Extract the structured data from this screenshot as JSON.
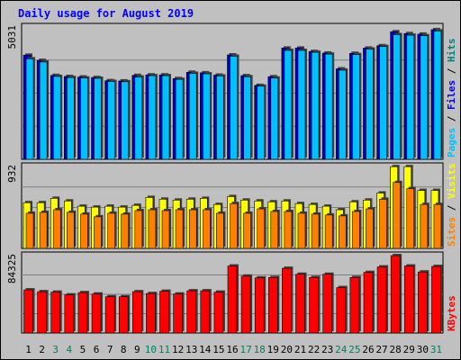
{
  "chart_data": {
    "type": "bar",
    "title": "Daily usage for August 2019",
    "categories": [
      "1",
      "2",
      "3",
      "4",
      "5",
      "6",
      "7",
      "8",
      "9",
      "10",
      "11",
      "12",
      "13",
      "14",
      "15",
      "16",
      "17",
      "18",
      "19",
      "20",
      "21",
      "22",
      "23",
      "24",
      "25",
      "26",
      "27",
      "28",
      "29",
      "30",
      "31"
    ],
    "weekend_days": [
      "3",
      "4",
      "10",
      "11",
      "17",
      "18",
      "24",
      "25",
      "31"
    ],
    "panels": [
      {
        "name": "hits-files-pages",
        "max_label": "5031",
        "ymax": 5031,
        "label_parts": [
          "Pages",
          "Files",
          "Hits"
        ],
        "label_colors": [
          "#00c0ff",
          "#0000ff",
          "#008080"
        ],
        "series": [
          {
            "name": "Hits",
            "color": "#0000cc",
            "values": [
              3960,
              3760,
              3190,
              3150,
              3130,
              3110,
              2990,
              2980,
              3190,
              3210,
              3210,
              3070,
              3310,
              3290,
              3200,
              3970,
              3180,
              2810,
              3140,
              4230,
              4230,
              4100,
              4040,
              3440,
              4030,
              4230,
              4320,
              4850,
              4780,
              4760,
              4930
            ]
          },
          {
            "name": "Files",
            "color": "#00c0ff",
            "values": [
              3820,
              3700,
              3150,
              3110,
              3090,
              3080,
              2960,
              2950,
              3130,
              3180,
              3180,
              3040,
              3270,
              3250,
              3170,
              3920,
              3140,
              2780,
              3090,
              4140,
              4140,
              4070,
              4000,
              3390,
              3980,
              4190,
              4290,
              4740,
              4720,
              4700,
              4880
            ]
          }
        ]
      },
      {
        "name": "visits-sites",
        "max_label": "932",
        "ymax": 932,
        "label_parts": [
          "Sites",
          "Visits"
        ],
        "label_colors": [
          "#ff8000",
          "#ffff00"
        ],
        "series": [
          {
            "name": "Visits",
            "color": "#ffff00",
            "values": [
              520,
              520,
              570,
              540,
              480,
              470,
              480,
              470,
              490,
              580,
              560,
              550,
              560,
              570,
              500,
              590,
              550,
              540,
              530,
              540,
              510,
              500,
              480,
              440,
              530,
              550,
              630,
              930,
              930,
              660,
              660
            ]
          },
          {
            "name": "Sites",
            "color": "#ff8000",
            "values": [
              400,
              410,
              440,
              410,
              390,
              360,
              400,
              390,
              430,
              440,
              430,
              440,
              440,
              440,
              400,
              510,
              400,
              450,
              420,
              420,
              400,
              390,
              380,
              370,
              420,
              450,
              560,
              750,
              680,
              500,
              500
            ]
          }
        ]
      },
      {
        "name": "kbytes",
        "max_label": "84325",
        "ymax": 84325,
        "label_parts": [
          "KBytes"
        ],
        "label_colors": [
          "#ff0000"
        ],
        "series": [
          {
            "name": "KBytes",
            "color": "#ff0000",
            "values": [
              47000,
              45000,
              44500,
              41500,
              44000,
              42500,
              39500,
              39500,
              45000,
              43000,
              45500,
              42500,
              46000,
              46000,
              44500,
              73000,
              62000,
              60000,
              60500,
              70500,
              64000,
              60500,
              64000,
              49500,
              60500,
              66000,
              72000,
              84300,
              73000,
              66500,
              72500
            ]
          }
        ]
      }
    ]
  },
  "colors": {
    "background": "#c0c0c0",
    "title_color": "#0000ff",
    "tick_normal": "#000000",
    "tick_weekend": "#00805c"
  }
}
